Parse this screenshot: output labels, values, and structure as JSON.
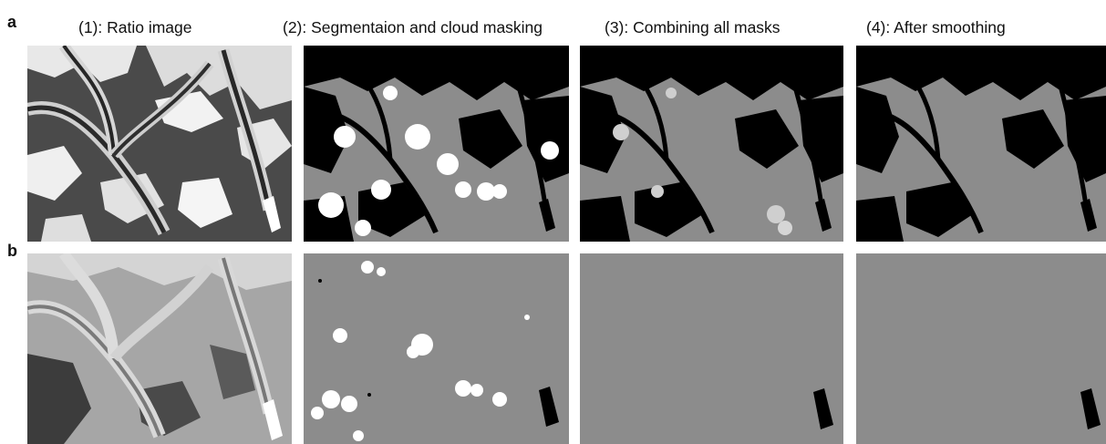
{
  "row_labels": {
    "a": "a",
    "b": "b"
  },
  "columns": [
    {
      "title": "(1): Ratio image"
    },
    {
      "title": "(2): Segmentaion and cloud masking"
    },
    {
      "title": "(3): Combining all masks"
    },
    {
      "title": "(4): After smoothing"
    }
  ],
  "colors": {
    "mask_gray": "#8c8c8c",
    "black": "#000000",
    "cloud_white": "#ffffff",
    "ratio_dark": "#3a3a3a"
  }
}
